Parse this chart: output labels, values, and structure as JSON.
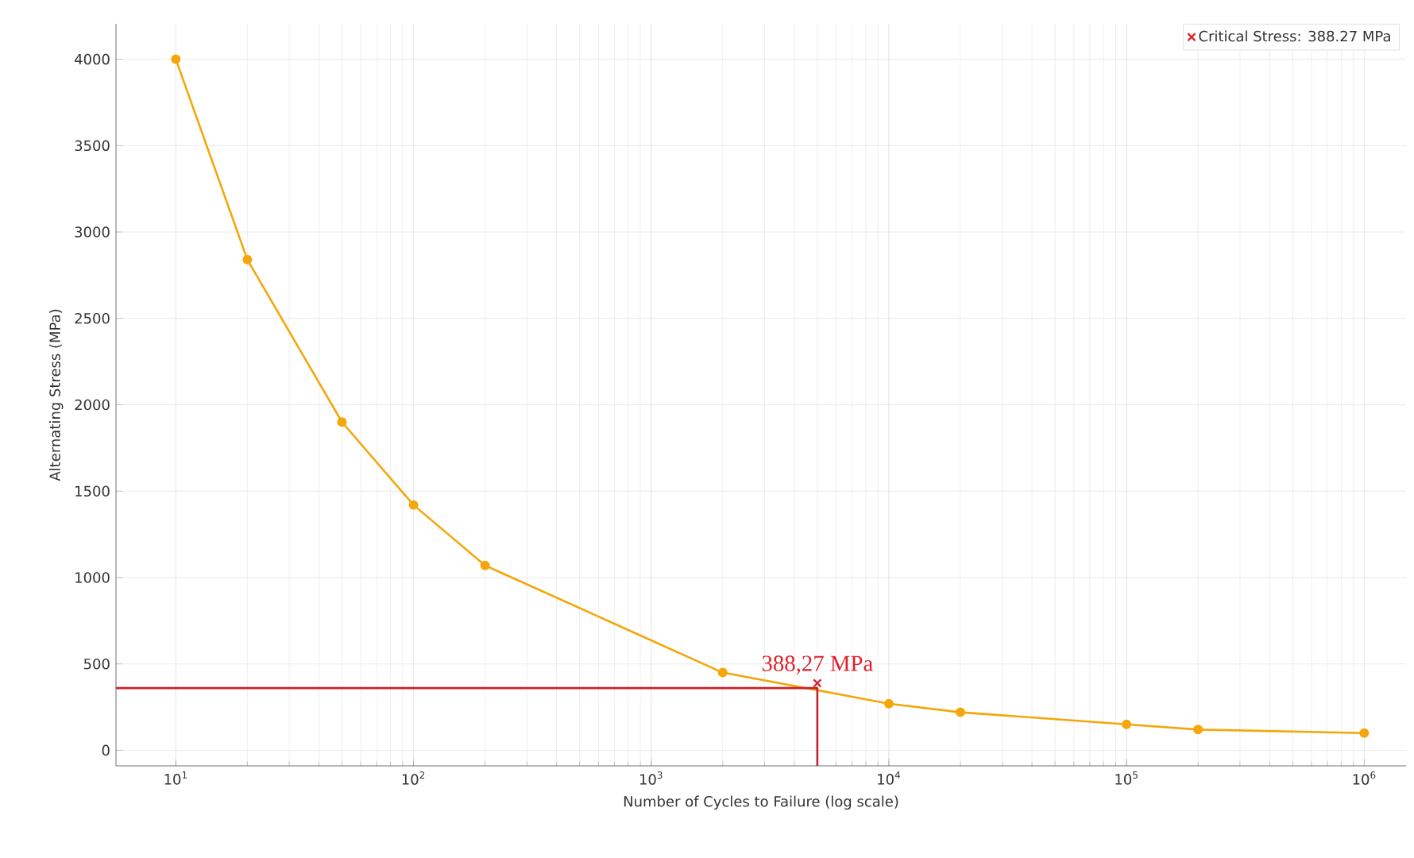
{
  "chart_data": {
    "type": "line",
    "xlabel": "Number of Cycles to Failure (log scale)",
    "ylabel": "Alternating Stress (MPa)",
    "log": "x",
    "grid": true,
    "legend": "top right",
    "xlim": [
      5.6,
      1500000
    ],
    "ylim": [
      -90,
      4205
    ],
    "xticks": [
      {
        "value": 10,
        "label": "10$^{1}$"
      },
      {
        "value": 100,
        "label": "10$^{2}$"
      },
      {
        "value": 1000,
        "label": "10$^{3}$"
      },
      {
        "value": 10000,
        "label": "10$^{4}$"
      },
      {
        "value": 100000,
        "label": "10$^{5}$"
      },
      {
        "value": 1000000,
        "label": "10$^{6}$"
      }
    ],
    "yticks": [
      0,
      500,
      1000,
      1500,
      2000,
      2500,
      3000,
      3500,
      4000
    ],
    "series": [
      {
        "color": "#f5a60a",
        "marker": "circle",
        "x": [
          10,
          20,
          50,
          100,
          200,
          2000,
          10000,
          20000,
          100000,
          200000,
          1000000
        ],
        "values": [
          4000,
          2840,
          1900,
          1420,
          1070,
          450,
          270,
          220,
          150,
          120,
          100
        ]
      },
      {
        "type": "line",
        "color": "#c8202a",
        "marker": "none",
        "x": [
          5.6,
          5000,
          5000
        ],
        "values": [
          360,
          360,
          -90
        ]
      },
      {
        "type": "scatter",
        "name": "Critical Stress: 388.27 MPa",
        "color": "#e0202a",
        "marker": "cross",
        "x": [
          5000
        ],
        "values": [
          388.27
        ]
      }
    ],
    "annotations": [
      {
        "text": "388,27 MPa",
        "x": 5000,
        "y": 388.27
      }
    ]
  }
}
